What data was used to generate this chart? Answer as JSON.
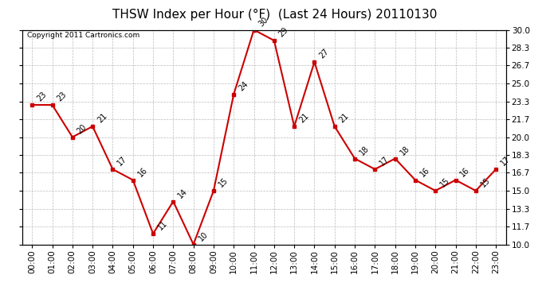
{
  "title": "THSW Index per Hour (°F)  (Last 24 Hours) 20110130",
  "copyright": "Copyright 2011 Cartronics.com",
  "hours": [
    "00:00",
    "01:00",
    "02:00",
    "03:00",
    "04:00",
    "05:00",
    "06:00",
    "07:00",
    "08:00",
    "09:00",
    "10:00",
    "11:00",
    "12:00",
    "13:00",
    "14:00",
    "15:00",
    "16:00",
    "17:00",
    "18:00",
    "19:00",
    "20:00",
    "21:00",
    "22:00",
    "23:00"
  ],
  "values": [
    23,
    23,
    20,
    21,
    17,
    16,
    11,
    14,
    10,
    15,
    24,
    30,
    29,
    21,
    27,
    21,
    18,
    17,
    18,
    16,
    15,
    16,
    15,
    17
  ],
  "ylim_min": 10.0,
  "ylim_max": 30.0,
  "yticks": [
    10.0,
    11.7,
    13.3,
    15.0,
    16.7,
    18.3,
    20.0,
    21.7,
    23.3,
    25.0,
    26.7,
    28.3,
    30.0
  ],
  "ytick_labels": [
    "10.0",
    "11.7",
    "13.3",
    "15.0",
    "16.7",
    "18.3",
    "20.0",
    "21.7",
    "23.3",
    "25.0",
    "26.7",
    "28.3",
    "30.0"
  ],
  "line_color": "#cc0000",
  "marker_color": "#cc0000",
  "bg_color": "#ffffff",
  "grid_color": "#bbbbbb",
  "title_fontsize": 11,
  "tick_fontsize": 7.5,
  "annotation_fontsize": 7,
  "copyright_fontsize": 6.5
}
